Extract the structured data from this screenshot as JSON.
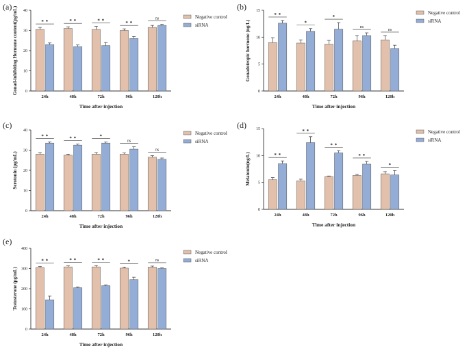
{
  "colors": {
    "negative_control": "#e2c0ac",
    "sirna": "#93add6",
    "axis": "#333333",
    "bar_edge": "#555555"
  },
  "chart_data": [
    {
      "panel": "(a)",
      "type": "bar",
      "title": "",
      "categories": [
        "24h",
        "48h",
        "72h",
        "96h",
        "120h"
      ],
      "xlabel": "Time after injection",
      "ylabel": "Gonad-inhibiting Hormone content(pg/mL)",
      "ylim": [
        0,
        40
      ],
      "yticks": [
        "0",
        "10",
        "20",
        "30",
        "40"
      ],
      "legend": [
        "Negative control",
        "siRNA"
      ],
      "legend_position": "right",
      "series": [
        {
          "name": "Negative control",
          "values": [
            30.5,
            31.0,
            30.5,
            30.0,
            31.5
          ],
          "errors": [
            1.0,
            0.8,
            1.5,
            0.8,
            1.0
          ]
        },
        {
          "name": "siRNA",
          "values": [
            23.0,
            22.0,
            22.5,
            26.0,
            32.5
          ],
          "errors": [
            0.8,
            0.8,
            1.5,
            1.0,
            0.5
          ]
        }
      ],
      "significance": [
        "* *",
        "* *",
        "* *",
        "* *",
        "ns"
      ]
    },
    {
      "panel": "(b)",
      "type": "bar",
      "title": "",
      "categories": [
        "24h",
        "48h",
        "72h",
        "96h",
        "120h"
      ],
      "xlabel": "Time after injection",
      "ylabel": "Gonadotropic hormone (ng/L)",
      "ylim": [
        0,
        15
      ],
      "yticks": [
        "0",
        "5",
        "10",
        "15"
      ],
      "legend": [
        "Negative control",
        "siRNA"
      ],
      "legend_position": "right",
      "series": [
        {
          "name": "Negative control",
          "values": [
            9.0,
            8.9,
            8.7,
            9.3,
            9.5
          ],
          "errors": [
            0.9,
            0.6,
            0.7,
            1.0,
            0.8
          ]
        },
        {
          "name": "siRNA",
          "values": [
            12.6,
            11.1,
            11.5,
            10.3,
            7.9
          ],
          "errors": [
            0.5,
            0.5,
            1.2,
            0.5,
            0.6
          ]
        }
      ],
      "significance": [
        "* *",
        "*",
        "*",
        "ns",
        "ns"
      ]
    },
    {
      "panel": "(c)",
      "type": "bar",
      "title": "",
      "categories": [
        "24h",
        "48h",
        "72h",
        "96h",
        "120h"
      ],
      "xlabel": "Time after injection",
      "ylabel": "Serotonin (pg/mL)",
      "ylim": [
        0,
        40
      ],
      "yticks": [
        "0",
        "10",
        "20",
        "30",
        "40"
      ],
      "legend": [
        "Negative control",
        "siRNA"
      ],
      "legend_position": "right",
      "series": [
        {
          "name": "Negative control",
          "values": [
            28.0,
            27.5,
            28.0,
            28.0,
            26.5
          ],
          "errors": [
            0.8,
            0.5,
            0.8,
            0.6,
            0.8
          ]
        },
        {
          "name": "siRNA",
          "values": [
            33.5,
            32.5,
            33.5,
            30.5,
            25.5
          ],
          "errors": [
            0.6,
            0.5,
            0.5,
            1.2,
            0.6
          ]
        }
      ],
      "significance": [
        "* *",
        "* *",
        "*",
        "ns",
        "ns"
      ]
    },
    {
      "panel": "(d)",
      "type": "bar",
      "title": "",
      "categories": [
        "24h",
        "48h",
        "72h",
        "96h",
        "120h"
      ],
      "xlabel": "Time after injection",
      "ylabel": "Melatonin(ng/L)",
      "ylim": [
        0,
        15
      ],
      "yticks": [
        "0",
        "5",
        "10",
        "15"
      ],
      "legend": [
        "Negative control",
        "siRNA"
      ],
      "legend_position": "right",
      "series": [
        {
          "name": "Negative control",
          "values": [
            5.5,
            5.3,
            6.1,
            6.3,
            6.6
          ],
          "errors": [
            0.4,
            0.3,
            0.1,
            0.2,
            0.4
          ]
        },
        {
          "name": "siRNA",
          "values": [
            8.5,
            12.4,
            10.5,
            8.4,
            6.4
          ],
          "errors": [
            0.5,
            1.1,
            0.4,
            0.5,
            0.8
          ]
        }
      ],
      "significance": [
        "* *",
        "* *",
        "* *",
        "* *",
        "*"
      ]
    },
    {
      "panel": "(e)",
      "type": "bar",
      "title": "",
      "categories": [
        "24h",
        "48h",
        "72h",
        "96h",
        "120h"
      ],
      "xlabel": "Time after injection",
      "ylabel": "Testosterone (pg/mL)",
      "ylim": [
        0,
        400
      ],
      "yticks": [
        "0",
        "100",
        "200",
        "300",
        "400"
      ],
      "legend": [
        "Negative control",
        "siRNA"
      ],
      "legend_position": "right",
      "series": [
        {
          "name": "Negative control",
          "values": [
            305,
            308,
            308,
            302,
            307
          ],
          "errors": [
            5,
            5,
            6,
            5,
            5
          ]
        },
        {
          "name": "siRNA",
          "values": [
            145,
            205,
            215,
            245,
            300
          ],
          "errors": [
            18,
            3,
            3,
            12,
            3
          ]
        }
      ],
      "significance": [
        "* *",
        "* *",
        "* *",
        "*",
        "ns"
      ]
    }
  ]
}
